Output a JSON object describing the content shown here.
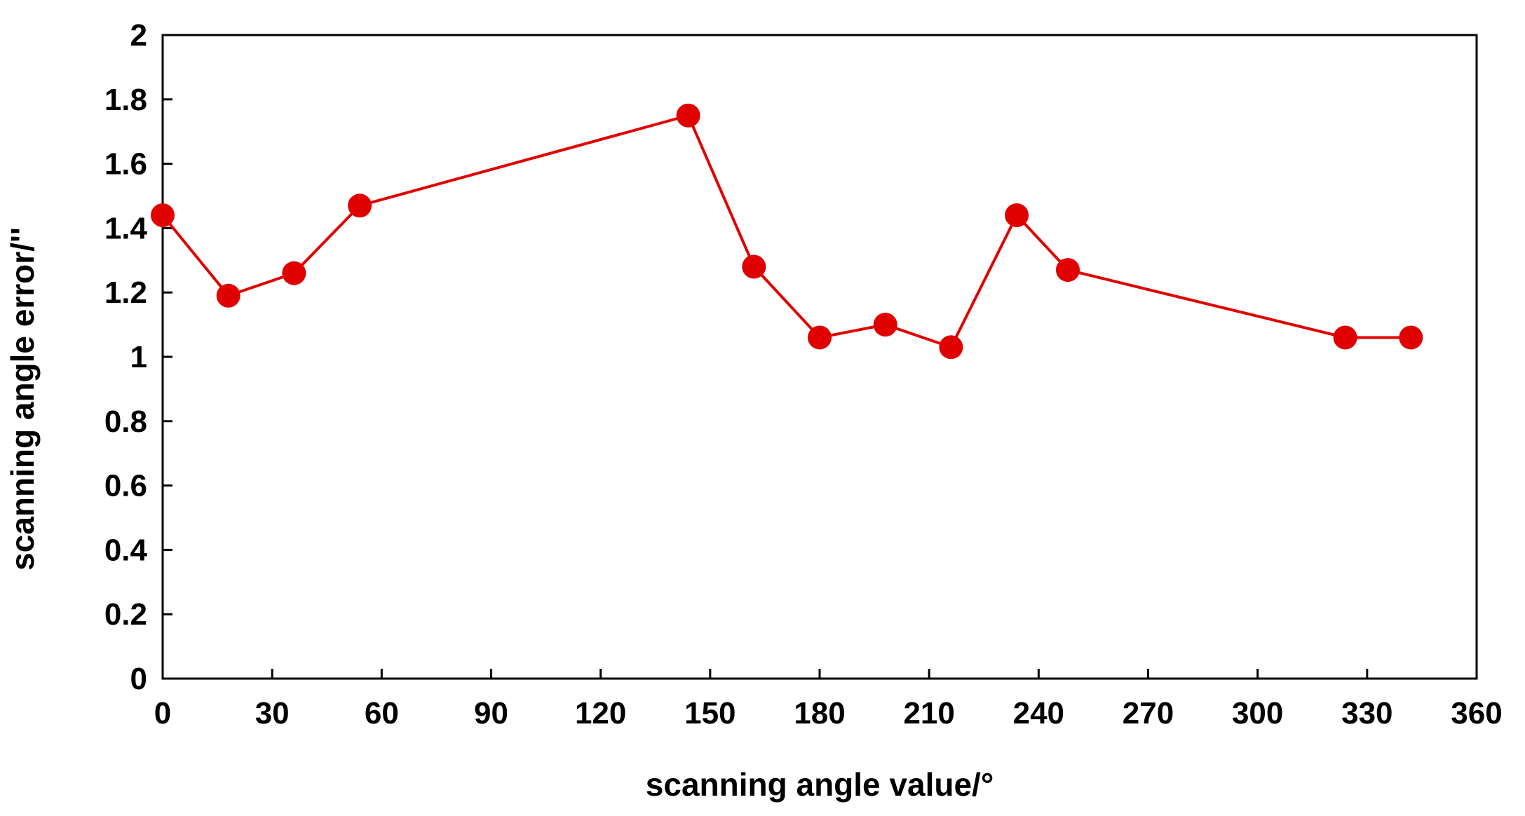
{
  "chart_data": {
    "type": "line",
    "title": "",
    "xlabel": "scanning angle value/°",
    "ylabel": "scanning angle error/''",
    "xlim": [
      0,
      360
    ],
    "ylim": [
      0,
      2
    ],
    "xticks": [
      0,
      30,
      60,
      90,
      120,
      150,
      180,
      210,
      240,
      270,
      300,
      330,
      360
    ],
    "yticks": [
      0,
      0.2,
      0.4,
      0.6,
      0.8,
      1,
      1.2,
      1.4,
      1.6,
      1.8,
      2
    ],
    "xtick_labels": [
      "0",
      "30",
      "60",
      "90",
      "120",
      "150",
      "180",
      "210",
      "240",
      "270",
      "300",
      "330",
      "360"
    ],
    "ytick_labels": [
      "0",
      "0.2",
      "0.4",
      "0.6",
      "0.8",
      "1",
      "1.2",
      "1.4",
      "1.6",
      "1.8",
      "2"
    ],
    "grid": false,
    "legend": "none",
    "series": [
      {
        "color": "#e00000",
        "marker": "circle",
        "x": [
          0,
          18,
          36,
          54,
          144,
          162,
          180,
          198,
          216,
          234,
          248,
          324,
          342
        ],
        "y": [
          1.44,
          1.19,
          1.26,
          1.47,
          1.75,
          1.28,
          1.06,
          1.1,
          1.03,
          1.44,
          1.27,
          1.06,
          1.06
        ]
      }
    ]
  }
}
